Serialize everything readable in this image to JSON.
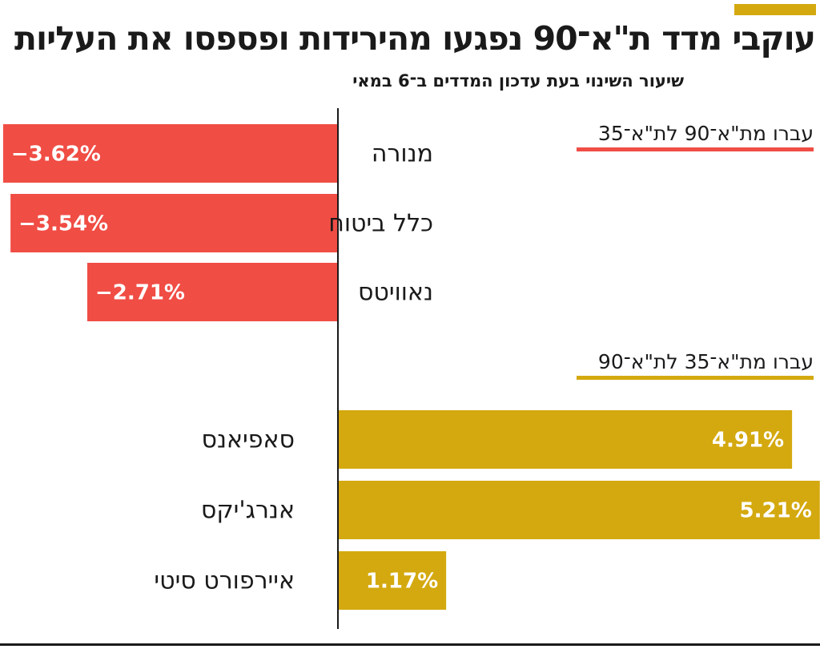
{
  "chart_data": {
    "type": "bar",
    "orientation": "horizontal-diverging",
    "title": "עוקבי מדד ת\"א־90 נפגעו מהירידות ופספסו את העליות",
    "subtitle": "שיעור השינוי בעת עדכון המדדים ב־6 במאי",
    "value_unit": "%",
    "groups": [
      {
        "name": "עברו מת\"א־90 לת\"א־35",
        "color": "#f04d45",
        "items": [
          {
            "label": "מנורה",
            "value": -3.62,
            "value_label": "−3.62%"
          },
          {
            "label": "כלל ביטוח",
            "value": -3.54,
            "value_label": "−3.54%"
          },
          {
            "label": "נאוויטס",
            "value": -2.71,
            "value_label": "−2.71%"
          }
        ]
      },
      {
        "name": "עברו מת\"א־35 לת\"א־90",
        "color": "#d4a90f",
        "items": [
          {
            "label": "סאפיאנס",
            "value": 4.91,
            "value_label": "4.91%"
          },
          {
            "label": "אנרג'יקס",
            "value": 5.21,
            "value_label": "5.21%"
          },
          {
            "label": "איירפורט סיטי",
            "value": 1.17,
            "value_label": "1.17%"
          }
        ]
      }
    ]
  },
  "colors": {
    "accent": "#d4a90f",
    "negative": "#f04d45",
    "positive": "#d4a90f",
    "text": "#1a1a1a"
  }
}
